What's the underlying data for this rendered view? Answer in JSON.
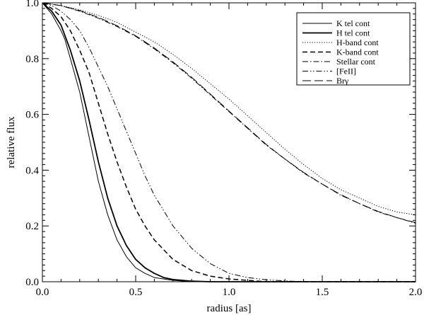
{
  "chart_data": {
    "type": "line",
    "title": "",
    "xlabel": "radius [as]",
    "ylabel": "relative flux",
    "xlim": [
      0.0,
      2.0
    ],
    "ylim": [
      0.0,
      1.0
    ],
    "xticks": [
      "0.0",
      "0.5",
      "1.0",
      "1.5",
      "2.0"
    ],
    "yticks": [
      "0.0",
      "0.2",
      "0.4",
      "0.6",
      "0.8",
      "1.0"
    ],
    "grid": false,
    "legend_position": "top-right",
    "series": [
      {
        "name": "K tel cont",
        "dash": "solid",
        "stroke_width": 1.0,
        "points": [
          [
            0,
            1.0
          ],
          [
            0.05,
            0.96
          ],
          [
            0.1,
            0.9
          ],
          [
            0.12,
            0.87
          ],
          [
            0.15,
            0.8
          ],
          [
            0.2,
            0.68
          ],
          [
            0.25,
            0.52
          ],
          [
            0.3,
            0.36
          ],
          [
            0.35,
            0.24
          ],
          [
            0.4,
            0.15
          ],
          [
            0.45,
            0.09
          ],
          [
            0.5,
            0.05
          ],
          [
            0.55,
            0.03
          ],
          [
            0.6,
            0.015
          ],
          [
            0.7,
            0.005
          ],
          [
            0.8,
            0.0
          ],
          [
            1.0,
            0.0
          ],
          [
            2.0,
            0.0
          ]
        ]
      },
      {
        "name": "H tel cont",
        "dash": "solid",
        "stroke_width": 1.8,
        "points": [
          [
            0,
            1.0
          ],
          [
            0.05,
            0.97
          ],
          [
            0.1,
            0.92
          ],
          [
            0.15,
            0.83
          ],
          [
            0.2,
            0.72
          ],
          [
            0.25,
            0.58
          ],
          [
            0.3,
            0.43
          ],
          [
            0.35,
            0.3
          ],
          [
            0.4,
            0.2
          ],
          [
            0.45,
            0.13
          ],
          [
            0.5,
            0.08
          ],
          [
            0.55,
            0.05
          ],
          [
            0.6,
            0.03
          ],
          [
            0.65,
            0.015
          ],
          [
            0.7,
            0.008
          ],
          [
            0.8,
            0.002
          ],
          [
            0.9,
            0.0
          ],
          [
            1.0,
            0.0
          ],
          [
            2.0,
            0.0
          ]
        ]
      },
      {
        "name": "H-band cont",
        "dash": "dotted",
        "stroke_width": 1.0,
        "points": [
          [
            0,
            1.0
          ],
          [
            0.1,
            0.99
          ],
          [
            0.2,
            0.975
          ],
          [
            0.3,
            0.955
          ],
          [
            0.4,
            0.93
          ],
          [
            0.5,
            0.895
          ],
          [
            0.6,
            0.86
          ],
          [
            0.7,
            0.815
          ],
          [
            0.8,
            0.765
          ],
          [
            0.9,
            0.71
          ],
          [
            1.0,
            0.655
          ],
          [
            1.1,
            0.595
          ],
          [
            1.2,
            0.535
          ],
          [
            1.3,
            0.475
          ],
          [
            1.4,
            0.42
          ],
          [
            1.5,
            0.37
          ],
          [
            1.6,
            0.33
          ],
          [
            1.7,
            0.3
          ],
          [
            1.8,
            0.27
          ],
          [
            1.9,
            0.25
          ],
          [
            2.0,
            0.24
          ]
        ]
      },
      {
        "name": "K-band cont",
        "dash": "dashed",
        "stroke_width": 1.5,
        "points": [
          [
            0,
            1.0
          ],
          [
            0.05,
            0.98
          ],
          [
            0.1,
            0.95
          ],
          [
            0.15,
            0.9
          ],
          [
            0.2,
            0.83
          ],
          [
            0.25,
            0.75
          ],
          [
            0.3,
            0.64
          ],
          [
            0.35,
            0.53
          ],
          [
            0.4,
            0.43
          ],
          [
            0.45,
            0.34
          ],
          [
            0.5,
            0.26
          ],
          [
            0.55,
            0.2
          ],
          [
            0.6,
            0.15
          ],
          [
            0.7,
            0.08
          ],
          [
            0.8,
            0.04
          ],
          [
            0.9,
            0.02
          ],
          [
            1.0,
            0.01
          ],
          [
            1.1,
            0.005
          ],
          [
            1.2,
            0.0
          ],
          [
            2.0,
            0.0
          ]
        ]
      },
      {
        "name": "Stellar cont",
        "dash": "dashdot",
        "stroke_width": 1.0,
        "points": [
          [
            0,
            1.0
          ],
          [
            0.1,
            0.99
          ],
          [
            0.2,
            0.97
          ],
          [
            0.3,
            0.945
          ],
          [
            0.4,
            0.915
          ],
          [
            0.5,
            0.88
          ],
          [
            0.6,
            0.835
          ],
          [
            0.7,
            0.785
          ],
          [
            0.8,
            0.73
          ],
          [
            0.9,
            0.67
          ],
          [
            1.0,
            0.61
          ],
          [
            1.1,
            0.55
          ],
          [
            1.2,
            0.49
          ],
          [
            1.3,
            0.44
          ],
          [
            1.4,
            0.39
          ],
          [
            1.5,
            0.35
          ],
          [
            1.6,
            0.31
          ],
          [
            1.7,
            0.28
          ],
          [
            1.8,
            0.25
          ],
          [
            1.9,
            0.23
          ],
          [
            2.0,
            0.21
          ]
        ]
      },
      {
        "name": "[FeII]",
        "dash": "dashdotdot",
        "stroke_width": 1.0,
        "points": [
          [
            0,
            1.0
          ],
          [
            0.05,
            0.99
          ],
          [
            0.1,
            0.97
          ],
          [
            0.15,
            0.94
          ],
          [
            0.2,
            0.9
          ],
          [
            0.25,
            0.84
          ],
          [
            0.3,
            0.77
          ],
          [
            0.35,
            0.7
          ],
          [
            0.4,
            0.62
          ],
          [
            0.45,
            0.54
          ],
          [
            0.5,
            0.46
          ],
          [
            0.55,
            0.38
          ],
          [
            0.6,
            0.31
          ],
          [
            0.7,
            0.2
          ],
          [
            0.8,
            0.12
          ],
          [
            0.9,
            0.065
          ],
          [
            1.0,
            0.03
          ],
          [
            1.1,
            0.015
          ],
          [
            1.2,
            0.007
          ],
          [
            1.3,
            0.003
          ],
          [
            1.4,
            0.0
          ],
          [
            2.0,
            0.0
          ]
        ]
      },
      {
        "name": "Brγ",
        "dash": "longdash",
        "stroke_width": 1.0,
        "points": [
          [
            0,
            1.0
          ],
          [
            0.1,
            0.99
          ],
          [
            0.2,
            0.972
          ],
          [
            0.3,
            0.948
          ],
          [
            0.4,
            0.918
          ],
          [
            0.5,
            0.882
          ],
          [
            0.6,
            0.838
          ],
          [
            0.7,
            0.788
          ],
          [
            0.8,
            0.733
          ],
          [
            0.9,
            0.673
          ],
          [
            1.0,
            0.612
          ],
          [
            1.1,
            0.552
          ],
          [
            1.2,
            0.492
          ],
          [
            1.3,
            0.44
          ],
          [
            1.4,
            0.392
          ],
          [
            1.5,
            0.35
          ],
          [
            1.6,
            0.312
          ],
          [
            1.7,
            0.28
          ],
          [
            1.8,
            0.252
          ],
          [
            1.9,
            0.23
          ],
          [
            2.0,
            0.212
          ]
        ]
      }
    ]
  }
}
